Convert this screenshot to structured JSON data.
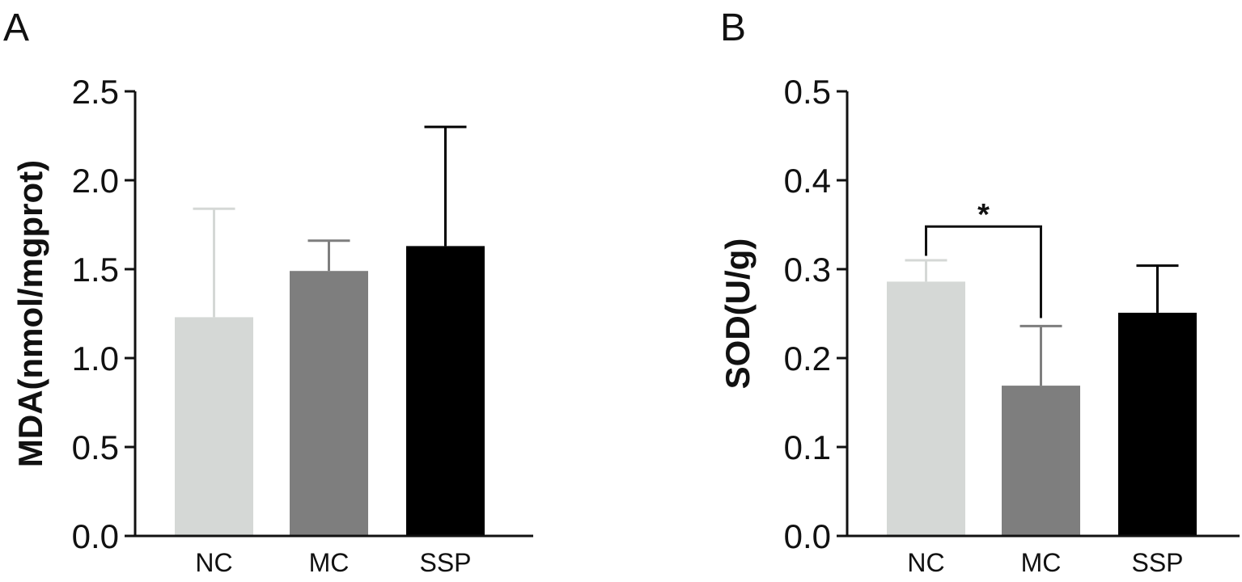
{
  "figure": {
    "panels": [
      "A",
      "B"
    ]
  },
  "chart_data": [
    {
      "type": "bar",
      "panel": "A",
      "title": "",
      "xlabel": "",
      "ylabel": "MDA(nmol/mgprot)",
      "categories": [
        "NC",
        "MC",
        "SSP"
      ],
      "values": [
        1.23,
        1.49,
        1.63
      ],
      "error": [
        0.61,
        0.17,
        0.67
      ],
      "colors": [
        "#d5d8d6",
        "#7e7e7e",
        "#000000"
      ],
      "ylim": [
        0,
        2.5
      ],
      "yticks": [
        0.0,
        0.5,
        1.0,
        1.5,
        2.0,
        2.5
      ],
      "ytick_labels": [
        "0.0",
        "0.5",
        "1.0",
        "1.5",
        "2.0",
        "2.5"
      ],
      "annotations": []
    },
    {
      "type": "bar",
      "panel": "B",
      "title": "",
      "xlabel": "",
      "ylabel": "SOD(U/g)",
      "categories": [
        "NC",
        "MC",
        "SSP"
      ],
      "values": [
        0.286,
        0.169,
        0.251
      ],
      "error": [
        0.024,
        0.067,
        0.053
      ],
      "colors": [
        "#d5d8d6",
        "#7e7e7e",
        "#000000"
      ],
      "ylim": [
        0,
        0.5
      ],
      "yticks": [
        0.0,
        0.1,
        0.2,
        0.3,
        0.4,
        0.5
      ],
      "ytick_labels": [
        "0.0",
        "0.1",
        "0.2",
        "0.3",
        "0.4",
        "0.5"
      ],
      "annotations": [
        {
          "type": "significance",
          "from": "NC",
          "to": "MC",
          "label": "*",
          "bracket_y": 0.348,
          "left_drop_to": 0.315,
          "right_drop_to": 0.245
        }
      ]
    }
  ]
}
